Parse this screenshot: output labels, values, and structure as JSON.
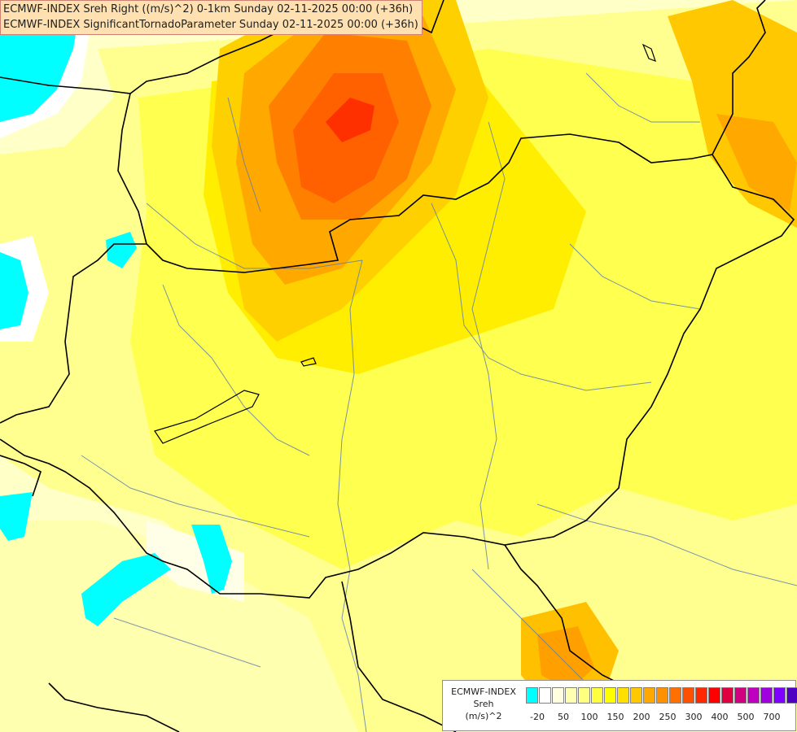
{
  "title": {
    "line1": "ECMWF-INDEX Sreh Right ((m/s)^2) 0-1km Sunday 02-11-2025 00:00 (+36h)",
    "line2": "ECMWF-INDEX SignificantTornadoParameter Sunday 02-11-2025 00:00 (+36h)"
  },
  "legend": {
    "label1": "ECMWF-INDEX",
    "label2": "Sreh",
    "label3": "(m/s)^2",
    "colors": [
      "#00ffff",
      "#ffffff",
      "#ffffe0",
      "#ffffb0",
      "#ffff80",
      "#ffff40",
      "#ffff00",
      "#ffe000",
      "#ffc800",
      "#ffa800",
      "#ff9000",
      "#ff7000",
      "#ff5000",
      "#ff2800",
      "#ff0000",
      "#e00040",
      "#d00080",
      "#c000c0",
      "#a000e0",
      "#8000ff",
      "#5000c0",
      "#2800a0",
      "#000080"
    ],
    "ticks": [
      "-20",
      "50",
      "100",
      "150",
      "200",
      "250",
      "300",
      "400",
      "500",
      "700"
    ]
  }
}
